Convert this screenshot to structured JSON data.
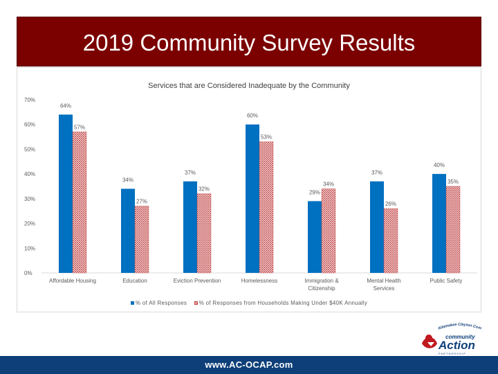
{
  "slide": {
    "title": "2019 Community Survey Results",
    "footer_url": "www.AC-OCAP.com",
    "logo": {
      "arc_text": "Allamakee Clayton Community Action",
      "word_community": "community",
      "word_action": "Action",
      "tagline": "P A R T N E R S H I P"
    }
  },
  "colors": {
    "banner": "#7b0000",
    "series1": "#0070c0",
    "series2_hatch": "#c04040",
    "footer": "#0e3f79"
  },
  "chart_data": {
    "type": "bar",
    "title": "Services that are Considered Inadequate by the Community",
    "categories": [
      "Affordable Housing",
      "Education",
      "Eviction Prevention",
      "Homelessness",
      "Immigration & Citizenship",
      "Mental Health Services",
      "Public Safety"
    ],
    "category_lines": [
      [
        "Affordable Housing"
      ],
      [
        "Education"
      ],
      [
        "Eviction Prevention"
      ],
      [
        "Homelessness"
      ],
      [
        "Immigration &",
        "Citizenship"
      ],
      [
        "Mental Health",
        "Services"
      ],
      [
        "Public Safety"
      ]
    ],
    "series": [
      {
        "name": "% of All Responses",
        "values": [
          64,
          34,
          37,
          60,
          29,
          37,
          40
        ]
      },
      {
        "name": "% of Responses from Households Making Under $40K Annually",
        "values": [
          57,
          27,
          32,
          53,
          34,
          26,
          35
        ]
      }
    ],
    "ylim": [
      0,
      70
    ],
    "yticks": [
      0,
      10,
      20,
      30,
      40,
      50,
      60,
      70
    ],
    "value_suffix": "%",
    "legend_position": "bottom",
    "grid": false
  }
}
